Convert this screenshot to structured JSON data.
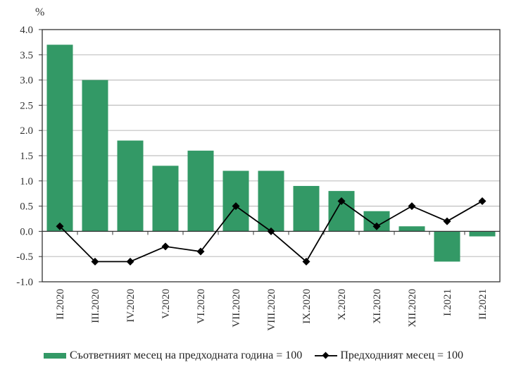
{
  "chart_data": {
    "type": "bar+line",
    "title": "",
    "unit_label": "%",
    "xlabel": "",
    "ylabel": "%",
    "ylim": [
      -1.0,
      4.0
    ],
    "yticks": [
      -1.0,
      -0.5,
      0.0,
      0.5,
      1.0,
      1.5,
      2.0,
      2.5,
      3.0,
      3.5,
      4.0
    ],
    "ytick_labels": [
      "-1.0",
      "-0.5",
      "0.0",
      "0.5",
      "1.0",
      "1.5",
      "2.0",
      "2.5",
      "3.0",
      "3.5",
      "4.0"
    ],
    "grid": "horizontal",
    "legend_position": "bottom",
    "categories": [
      "II.2020",
      "III.2020",
      "IV.2020",
      "V.2020",
      "VI.2020",
      "VII.2020",
      "VIII.2020",
      "IX.2020",
      "X.2020",
      "XI.2020",
      "XII.2020",
      "I.2021",
      "II.2021"
    ],
    "series": [
      {
        "name": "Съответният месец на предходната година = 100",
        "type": "bar",
        "color": "#339966",
        "values": [
          3.7,
          3.0,
          1.8,
          1.3,
          1.6,
          1.2,
          1.2,
          0.9,
          0.8,
          0.4,
          0.1,
          -0.6,
          -0.1
        ]
      },
      {
        "name": "Предходният месец = 100",
        "type": "line",
        "marker": "diamond",
        "color": "#000000",
        "values": [
          0.1,
          -0.6,
          -0.6,
          -0.3,
          -0.4,
          0.5,
          0.0,
          -0.6,
          0.6,
          0.1,
          0.5,
          0.2,
          0.6
        ]
      }
    ]
  },
  "legend": {
    "bar_label": "Съответният месец на предходната година = 100",
    "line_label": "Предходният месец = 100"
  },
  "colors": {
    "bar": "#339966",
    "line": "#000000",
    "grid": "#c0c0c0",
    "axis": "#333333"
  }
}
